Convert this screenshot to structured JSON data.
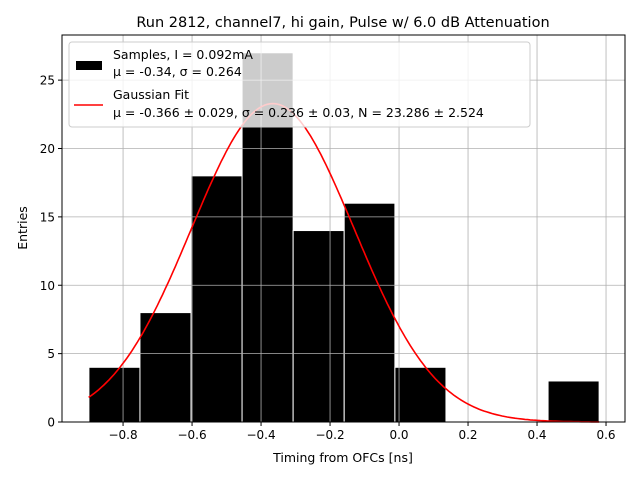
{
  "chart_data": {
    "type": "bar",
    "title": "Run 2812, channel7, hi gain, Pulse w/ 6.0 dB Attenuation",
    "xlabel": "Timing from OFCs [ns]",
    "ylabel": "Entries",
    "xlim": [
      -0.977,
      0.655
    ],
    "ylim": [
      0,
      28.3
    ],
    "grid": true,
    "xticks": [
      -0.8,
      -0.6,
      -0.4,
      -0.2,
      0.0,
      0.2,
      0.4,
      0.6
    ],
    "xtick_labels": [
      "−0.8",
      "−0.6",
      "−0.4",
      "−0.2",
      "0.0",
      "0.2",
      "0.4",
      "0.6"
    ],
    "yticks": [
      0,
      5,
      10,
      15,
      20,
      25
    ],
    "ytick_labels": [
      "0",
      "5",
      "10",
      "15",
      "20",
      "25"
    ],
    "histogram": {
      "bin_edges": [
        -0.899,
        -0.751,
        -0.603,
        -0.455,
        -0.307,
        -0.159,
        -0.012,
        0.136,
        0.284,
        0.432,
        0.58
      ],
      "counts": [
        4,
        8,
        18,
        27,
        14,
        16,
        4,
        0,
        0,
        3
      ],
      "color": "#000000"
    },
    "fit": {
      "type": "gaussian",
      "mu": -0.366,
      "sigma": 0.236,
      "N": 23.286,
      "x_range": [
        -0.9,
        0.58
      ],
      "color": "#ff0000"
    },
    "legend": {
      "placement": "top-left",
      "entries": [
        {
          "line1": "Samples, I = 0.092mA",
          "line2": "μ = -0.34, σ = 0.264"
        },
        {
          "line1": "Gaussian Fit",
          "line2": "μ = -0.366 ± 0.029, σ = 0.236 ± 0.03, N = 23.286 ± 2.524"
        }
      ]
    }
  }
}
